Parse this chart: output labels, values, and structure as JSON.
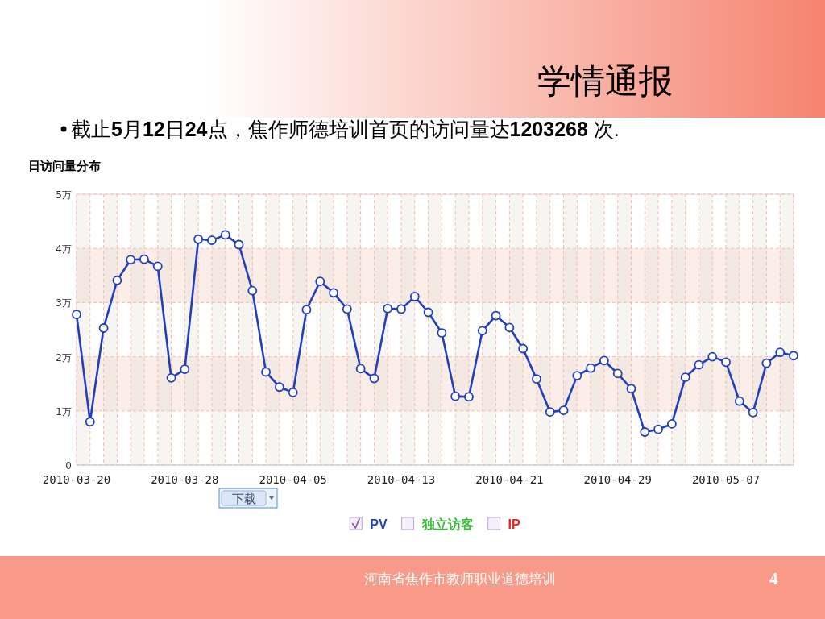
{
  "chart_data": {
    "type": "line",
    "title": "学情通报",
    "subtitle": "截止5月12日24点，焦作师德培训首页的访问量达1203268 次.",
    "annotations": [
      "日访问量分布",
      "下载",
      "河南省焦作市教师职业道德培训",
      "4",
      "独立访客",
      "IP"
    ],
    "x": [
      "2010-03-20",
      "2010-03-21",
      "2010-03-22",
      "2010-03-23",
      "2010-03-24",
      "2010-03-25",
      "2010-03-26",
      "2010-03-27",
      "2010-03-28",
      "2010-03-29",
      "2010-03-30",
      "2010-03-31",
      "2010-04-01",
      "2010-04-02",
      "2010-04-03",
      "2010-04-04",
      "2010-04-05",
      "2010-04-06",
      "2010-04-07",
      "2010-04-08",
      "2010-04-09",
      "2010-04-10",
      "2010-04-11",
      "2010-04-12",
      "2010-04-13",
      "2010-04-14",
      "2010-04-15",
      "2010-04-16",
      "2010-04-17",
      "2010-04-18",
      "2010-04-19",
      "2010-04-20",
      "2010-04-21",
      "2010-04-22",
      "2010-04-23",
      "2010-04-24",
      "2010-04-25",
      "2010-04-26",
      "2010-04-27",
      "2010-04-28",
      "2010-04-29",
      "2010-04-30",
      "2010-05-01",
      "2010-05-02",
      "2010-05-03",
      "2010-05-04",
      "2010-05-05",
      "2010-05-06",
      "2010-05-07",
      "2010-05-08",
      "2010-05-09",
      "2010-05-10",
      "2010-05-11",
      "2010-05-12"
    ],
    "series": [
      {
        "name": "PV",
        "color": "#1f3fbf",
        "values": [
          2.78,
          0.8,
          2.53,
          3.41,
          3.79,
          3.8,
          3.67,
          1.61,
          1.77,
          4.17,
          4.15,
          4.25,
          4.07,
          3.22,
          1.72,
          1.44,
          1.34,
          2.87,
          3.39,
          3.18,
          2.88,
          1.78,
          1.6,
          2.89,
          2.88,
          3.11,
          2.82,
          2.44,
          1.27,
          1.26,
          2.48,
          2.76,
          2.54,
          2.15,
          1.59,
          0.98,
          1.01,
          1.65,
          1.79,
          1.93,
          1.69,
          1.41,
          0.61,
          0.66,
          0.76,
          1.62,
          1.85,
          2.0,
          1.9,
          1.18,
          0.97,
          1.88,
          2.08,
          2.02
        ]
      }
    ],
    "xlim": [
      "2010-03-20",
      "2010-05-12"
    ],
    "xticks": [
      "2010-03-20",
      {
        "value": "2010-03-21",
        "label": null
      },
      {
        "value": "2010-03-22",
        "label": null
      },
      {
        "value": "2010-03-23",
        "label": null
      },
      {
        "value": "2010-03-24",
        "label": null
      },
      {
        "value": "2010-03-25",
        "label": null
      },
      {
        "value": "2010-03-26",
        "label": null
      },
      {
        "value": "2010-03-27",
        "label": null
      },
      "2010-03-28",
      {
        "value": "2010-03-29",
        "label": null
      },
      {
        "value": "2010-03-30",
        "label": null
      },
      {
        "value": "2010-03-31",
        "label": null
      },
      {
        "value": "2010-04-01",
        "label": null
      },
      {
        "value": "2010-04-02",
        "label": null
      },
      {
        "value": "2010-04-03",
        "label": null
      },
      {
        "value": "2010-04-04",
        "label": null
      },
      "2010-04-05",
      {
        "value": "2010-04-06",
        "label": null
      },
      {
        "value": "2010-04-07",
        "label": null
      },
      {
        "value": "2010-04-08",
        "label": null
      },
      {
        "value": "2010-04-09",
        "label": null
      },
      {
        "value": "2010-04-10",
        "label": null
      },
      {
        "value": "2010-04-11",
        "label": null
      },
      {
        "value": "2010-04-12",
        "label": null
      },
      "2010-04-13",
      {
        "value": "2010-04-14",
        "label": null
      },
      {
        "value": "2010-04-15",
        "label": null
      },
      {
        "value": "2010-04-16",
        "label": null
      },
      {
        "value": "2010-04-17",
        "label": null
      },
      {
        "value": "2010-04-18",
        "label": null
      },
      {
        "value": "2010-04-19",
        "label": null
      },
      {
        "value": "2010-04-20",
        "label": null
      },
      "2010-04-21",
      {
        "value": "2010-04-22",
        "label": null
      },
      {
        "value": "2010-04-23",
        "label": null
      },
      {
        "value": "2010-04-24",
        "label": null
      },
      {
        "value": "2010-04-25",
        "label": null
      },
      {
        "value": "2010-04-26",
        "label": null
      },
      {
        "value": "2010-04-27",
        "label": null
      },
      {
        "value": "2010-04-28",
        "label": null
      },
      "2010-04-29",
      {
        "value": "2010-04-30",
        "label": null
      },
      {
        "value": "2010-05-01",
        "label": null
      },
      {
        "value": "2010-05-02",
        "label": null
      },
      {
        "value": "2010-05-03",
        "label": null
      },
      {
        "value": "2010-05-04",
        "label": null
      },
      {
        "value": "2010-05-05",
        "label": null
      },
      {
        "value": "2010-05-06",
        "label": null
      },
      "2010-05-07",
      {
        "value": "2010-05-08",
        "label": null
      },
      {
        "value": "2010-05-09",
        "label": null
      },
      {
        "value": "2010-05-10",
        "label": null
      },
      {
        "value": "2010-05-11",
        "label": null
      },
      {
        "value": "2010-05-12",
        "label": null
      }
    ],
    "ylim": [
      0,
      5
    ],
    "yticks": [
      0,
      {
        "value": 1,
        "label": "1万"
      },
      {
        "value": 2,
        "label": "2万"
      },
      {
        "value": 3,
        "label": "3万"
      },
      {
        "value": 4,
        "label": "4万"
      },
      {
        "value": 5,
        "label": "5万"
      }
    ],
    "bands": [
      {
        "axis": "y",
        "from": 1,
        "to": 2,
        "color": "#fbede8"
      },
      {
        "axis": "y",
        "from": 3,
        "to": 4,
        "color": "#fbede8"
      }
    ],
    "grid": true,
    "legend": "bottom",
    "marker": "circle",
    "line_style": "solid"
  }
}
